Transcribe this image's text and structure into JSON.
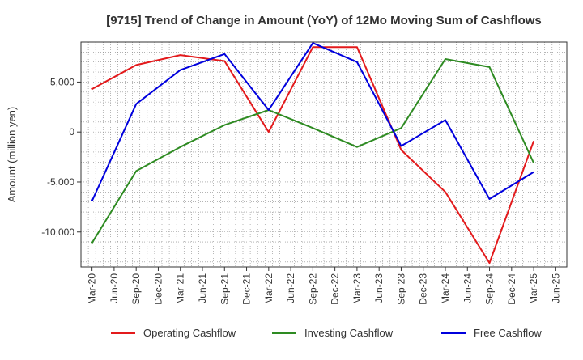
{
  "chart_data": {
    "type": "line",
    "title": "[9715]  Trend of Change in Amount (YoY) of 12Mo Moving Sum of Cashflows",
    "xlabel": "",
    "ylabel": "Amount (million yen)",
    "ylim": [
      -13500,
      9000
    ],
    "grid": true,
    "legend_position": "bottom",
    "x": [
      "Mar-20",
      "Jun-20",
      "Sep-20",
      "Dec-20",
      "Mar-21",
      "Jun-21",
      "Sep-21",
      "Dec-21",
      "Mar-22",
      "Jun-22",
      "Sep-22",
      "Dec-22",
      "Mar-23",
      "Jun-23",
      "Sep-23",
      "Dec-23",
      "Mar-24",
      "Jun-24",
      "Sep-24",
      "Dec-24",
      "Mar-25",
      "Jun-25"
    ],
    "yticks": [
      {
        "value": 5000,
        "label": "5,000"
      },
      {
        "value": 0,
        "label": "0"
      },
      {
        "value": -5000,
        "label": "-5,000"
      },
      {
        "value": -10000,
        "label": "-10,000"
      }
    ],
    "series": [
      {
        "name": "Operating Cashflow",
        "color": "#e31a1c",
        "values": [
          4300,
          null,
          6700,
          null,
          7700,
          null,
          7100,
          null,
          0,
          null,
          8500,
          null,
          8500,
          null,
          -1800,
          null,
          -6000,
          null,
          -13100,
          null,
          -900,
          null
        ]
      },
      {
        "name": "Investing Cashflow",
        "color": "#2e8b22",
        "values": [
          -11100,
          null,
          -3900,
          null,
          -1500,
          null,
          700,
          null,
          2200,
          null,
          400,
          null,
          -1500,
          null,
          400,
          null,
          7300,
          null,
          6500,
          null,
          -3100,
          null
        ]
      },
      {
        "name": "Free Cashflow",
        "color": "#0000dd",
        "values": [
          -6900,
          null,
          2800,
          null,
          6200,
          null,
          7800,
          null,
          2200,
          null,
          8900,
          null,
          7000,
          null,
          -1400,
          null,
          1200,
          null,
          -6700,
          null,
          -4000,
          null
        ]
      }
    ]
  }
}
